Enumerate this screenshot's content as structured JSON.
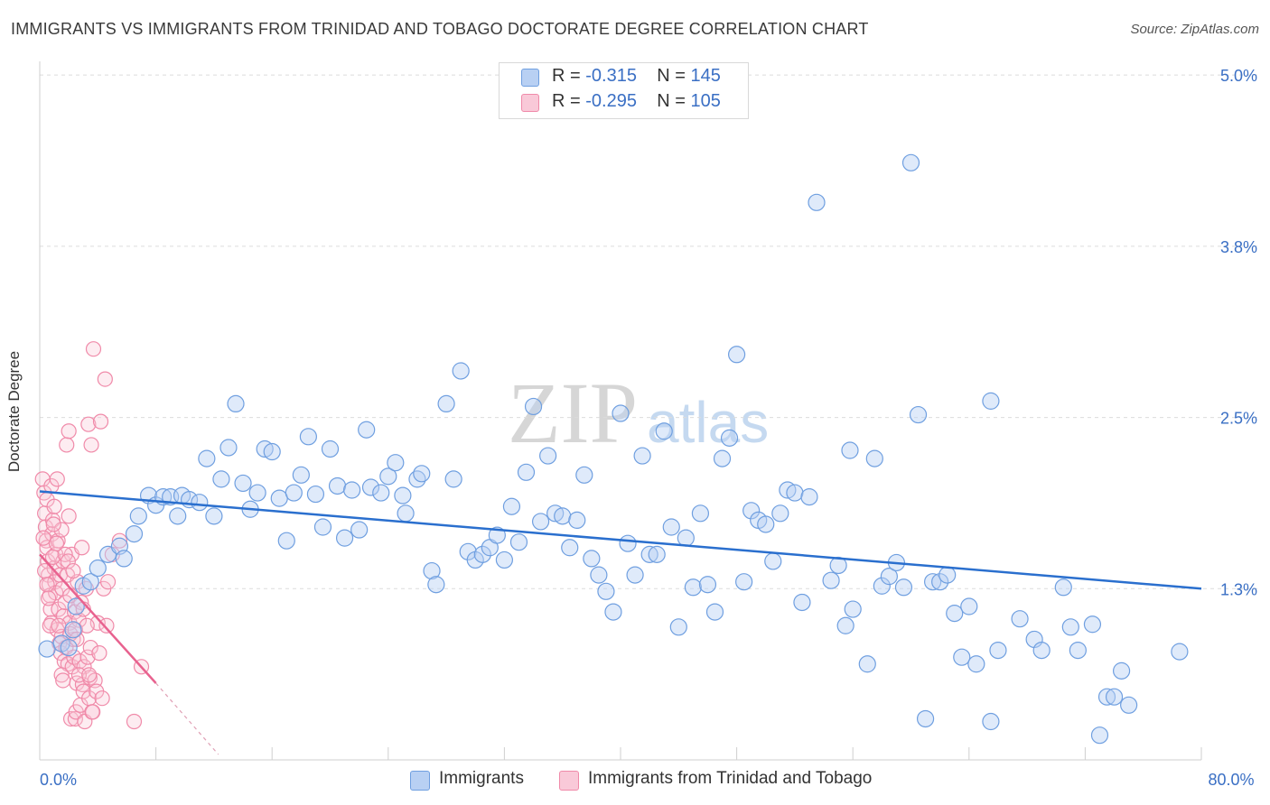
{
  "title": "IMMIGRANTS VS IMMIGRANTS FROM TRINIDAD AND TOBAGO DOCTORATE DEGREE CORRELATION CHART",
  "source": "Source: ZipAtlas.com",
  "watermark": {
    "part1": "ZIP",
    "part2": "atlas"
  },
  "colors": {
    "blue": "#6f9fe0",
    "blue_fill": "#b8d0f3",
    "blue_line": "#2a6fce",
    "pink": "#f08aa9",
    "pink_fill": "#f9c9d8",
    "pink_line": "#e8628f",
    "axis_text": "#3a6fc4"
  },
  "stats": {
    "immigrants": {
      "r_label": "R = ",
      "r_value": "-0.315",
      "n_label": "N = ",
      "n_value": "145"
    },
    "trinidad": {
      "r_label": "R = ",
      "r_value": "-0.295",
      "n_label": "N = ",
      "n_value": "105"
    }
  },
  "legend": {
    "immigrants": "Immigrants",
    "trinidad": "Immigrants from Trinidad and Tobago"
  },
  "chart_data": {
    "type": "scatter",
    "title": "IMMIGRANTS VS IMMIGRANTS FROM TRINIDAD AND TOBAGO DOCTORATE DEGREE CORRELATION CHART",
    "xlabel": "",
    "ylabel": "Doctorate Degree",
    "xlim": [
      0,
      80
    ],
    "ylim": [
      0,
      5.1
    ],
    "x_tick_labels": [
      {
        "value": 0,
        "label": "0.0%"
      },
      {
        "value": 80,
        "label": "80.0%"
      }
    ],
    "y_ticks": [
      {
        "value": 1.25,
        "label": "1.3%"
      },
      {
        "value": 2.5,
        "label": "2.5%"
      },
      {
        "value": 3.75,
        "label": "3.8%"
      },
      {
        "value": 5.0,
        "label": "5.0%"
      }
    ],
    "legend_position": "bottom",
    "series": [
      {
        "name": "Immigrants",
        "color": "#6f9fe0",
        "trend": {
          "x0": 0,
          "y0": 1.96,
          "x1": 80,
          "y1": 1.25
        },
        "points": [
          [
            0.5,
            0.81
          ],
          [
            1.5,
            0.85
          ],
          [
            2.0,
            0.82
          ],
          [
            2.3,
            0.95
          ],
          [
            2.5,
            1.12
          ],
          [
            3.0,
            1.27
          ],
          [
            3.5,
            1.3
          ],
          [
            4.0,
            1.4
          ],
          [
            4.7,
            1.5
          ],
          [
            5.5,
            1.56
          ],
          [
            5.8,
            1.47
          ],
          [
            6.5,
            1.65
          ],
          [
            6.8,
            1.78
          ],
          [
            7.5,
            1.93
          ],
          [
            8.0,
            1.86
          ],
          [
            8.5,
            1.92
          ],
          [
            9.0,
            1.92
          ],
          [
            9.5,
            1.78
          ],
          [
            9.8,
            1.93
          ],
          [
            10.3,
            1.9
          ],
          [
            11.0,
            1.88
          ],
          [
            11.5,
            2.2
          ],
          [
            12.0,
            1.78
          ],
          [
            12.5,
            2.05
          ],
          [
            13.0,
            2.28
          ],
          [
            13.5,
            2.6
          ],
          [
            14.0,
            2.02
          ],
          [
            14.5,
            1.83
          ],
          [
            15.0,
            1.95
          ],
          [
            15.5,
            2.27
          ],
          [
            16.0,
            2.25
          ],
          [
            16.5,
            1.91
          ],
          [
            17.0,
            1.6
          ],
          [
            17.5,
            1.95
          ],
          [
            18.0,
            2.08
          ],
          [
            18.5,
            2.36
          ],
          [
            19.0,
            1.94
          ],
          [
            19.5,
            1.7
          ],
          [
            20.0,
            2.27
          ],
          [
            20.5,
            2.0
          ],
          [
            21.0,
            1.62
          ],
          [
            21.5,
            1.97
          ],
          [
            22.0,
            1.68
          ],
          [
            22.5,
            2.41
          ],
          [
            22.8,
            1.99
          ],
          [
            23.5,
            1.95
          ],
          [
            24.0,
            2.07
          ],
          [
            24.5,
            2.17
          ],
          [
            25.0,
            1.93
          ],
          [
            25.2,
            1.8
          ],
          [
            26.0,
            2.05
          ],
          [
            26.3,
            2.09
          ],
          [
            27.0,
            1.38
          ],
          [
            27.3,
            1.28
          ],
          [
            28.0,
            2.6
          ],
          [
            28.5,
            2.05
          ],
          [
            29.0,
            2.84
          ],
          [
            29.5,
            1.52
          ],
          [
            30.0,
            1.46
          ],
          [
            30.5,
            1.5
          ],
          [
            31.0,
            1.55
          ],
          [
            31.5,
            1.64
          ],
          [
            32.0,
            1.46
          ],
          [
            32.5,
            1.85
          ],
          [
            33.0,
            1.59
          ],
          [
            33.5,
            2.1
          ],
          [
            34.0,
            2.58
          ],
          [
            34.5,
            1.74
          ],
          [
            35.0,
            2.22
          ],
          [
            35.5,
            1.8
          ],
          [
            36.0,
            1.78
          ],
          [
            36.5,
            1.55
          ],
          [
            37.0,
            1.75
          ],
          [
            37.5,
            2.08
          ],
          [
            38.0,
            1.47
          ],
          [
            38.5,
            1.35
          ],
          [
            39.0,
            1.23
          ],
          [
            39.5,
            1.08
          ],
          [
            40.0,
            2.53
          ],
          [
            40.5,
            1.58
          ],
          [
            41.0,
            1.35
          ],
          [
            41.5,
            2.22
          ],
          [
            42.0,
            1.5
          ],
          [
            42.5,
            1.5
          ],
          [
            43.0,
            2.4
          ],
          [
            43.5,
            1.7
          ],
          [
            44.0,
            0.97
          ],
          [
            44.5,
            1.62
          ],
          [
            45.0,
            1.26
          ],
          [
            45.5,
            1.8
          ],
          [
            46.0,
            1.28
          ],
          [
            46.5,
            1.08
          ],
          [
            47.0,
            2.2
          ],
          [
            47.5,
            2.35
          ],
          [
            48.0,
            2.96
          ],
          [
            48.5,
            1.3
          ],
          [
            49.0,
            1.82
          ],
          [
            49.5,
            1.75
          ],
          [
            50.0,
            1.72
          ],
          [
            50.5,
            1.45
          ],
          [
            51.0,
            1.8
          ],
          [
            51.5,
            1.97
          ],
          [
            52.0,
            1.95
          ],
          [
            52.5,
            1.15
          ],
          [
            53.0,
            1.92
          ],
          [
            53.5,
            4.07
          ],
          [
            54.5,
            1.31
          ],
          [
            55.0,
            1.42
          ],
          [
            55.5,
            0.98
          ],
          [
            55.8,
            2.26
          ],
          [
            56.0,
            1.1
          ],
          [
            57.0,
            0.7
          ],
          [
            57.5,
            2.2
          ],
          [
            58.0,
            1.27
          ],
          [
            58.5,
            1.34
          ],
          [
            59.0,
            1.44
          ],
          [
            59.5,
            1.26
          ],
          [
            60.0,
            4.36
          ],
          [
            60.5,
            2.52
          ],
          [
            61.0,
            0.3
          ],
          [
            61.5,
            1.3
          ],
          [
            62.0,
            1.3
          ],
          [
            62.5,
            1.35
          ],
          [
            63.0,
            1.07
          ],
          [
            63.5,
            0.75
          ],
          [
            64.0,
            1.12
          ],
          [
            64.5,
            0.7
          ],
          [
            65.5,
            2.62
          ],
          [
            65.5,
            0.28
          ],
          [
            66.0,
            0.8
          ],
          [
            67.5,
            1.03
          ],
          [
            68.5,
            0.88
          ],
          [
            69.0,
            0.8
          ],
          [
            70.5,
            1.26
          ],
          [
            71.0,
            0.97
          ],
          [
            71.5,
            0.8
          ],
          [
            72.5,
            0.99
          ],
          [
            73.0,
            0.18
          ],
          [
            73.5,
            0.46
          ],
          [
            74.0,
            0.46
          ],
          [
            74.5,
            0.65
          ],
          [
            75.0,
            0.4
          ],
          [
            78.5,
            0.79
          ]
        ]
      },
      {
        "name": "Immigrants from Trinidad and Tobago",
        "color": "#f08aa9",
        "trend": {
          "x0": 0,
          "y0": 1.5,
          "x1": 8.0,
          "y1": 0.56,
          "dash_x1": 12.3,
          "dash_y1": 0.04
        },
        "points": [
          [
            0.2,
            2.05
          ],
          [
            0.3,
            1.95
          ],
          [
            0.35,
            1.8
          ],
          [
            0.4,
            1.7
          ],
          [
            0.45,
            1.6
          ],
          [
            0.5,
            1.9
          ],
          [
            0.5,
            1.55
          ],
          [
            0.55,
            1.45
          ],
          [
            0.6,
            1.35
          ],
          [
            0.65,
            1.28
          ],
          [
            0.7,
            1.2
          ],
          [
            0.75,
            1.1
          ],
          [
            0.8,
            1.0
          ],
          [
            0.8,
            2.0
          ],
          [
            0.85,
            1.65
          ],
          [
            0.9,
            1.75
          ],
          [
            1.0,
            1.85
          ],
          [
            1.0,
            1.4
          ],
          [
            1.05,
            1.3
          ],
          [
            1.1,
            1.22
          ],
          [
            1.1,
            1.5
          ],
          [
            1.2,
            0.95
          ],
          [
            1.2,
            2.05
          ],
          [
            1.25,
            1.6
          ],
          [
            1.3,
            1.1
          ],
          [
            1.35,
            0.85
          ],
          [
            1.4,
            1.35
          ],
          [
            1.45,
            0.78
          ],
          [
            1.5,
            1.68
          ],
          [
            1.5,
            0.9
          ],
          [
            1.55,
            1.25
          ],
          [
            1.6,
            1.45
          ],
          [
            1.65,
            1.05
          ],
          [
            1.7,
            0.72
          ],
          [
            1.75,
            1.15
          ],
          [
            1.8,
            0.82
          ],
          [
            1.85,
            2.3
          ],
          [
            1.9,
            1.35
          ],
          [
            1.95,
            0.7
          ],
          [
            2.0,
            2.4
          ],
          [
            2.05,
            1.0
          ],
          [
            2.1,
            1.2
          ],
          [
            2.15,
            0.3
          ],
          [
            2.2,
            1.5
          ],
          [
            2.25,
            0.68
          ],
          [
            2.3,
            0.88
          ],
          [
            2.35,
            0.75
          ],
          [
            2.4,
            1.08
          ],
          [
            2.45,
            0.3
          ],
          [
            2.5,
            0.35
          ],
          [
            2.55,
            0.56
          ],
          [
            2.6,
            1.3
          ],
          [
            2.7,
            1.02
          ],
          [
            2.75,
            0.72
          ],
          [
            2.8,
            0.4
          ],
          [
            2.9,
            1.55
          ],
          [
            2.95,
            0.55
          ],
          [
            3.0,
            0.5
          ],
          [
            3.05,
            0.68
          ],
          [
            3.1,
            0.28
          ],
          [
            3.2,
            1.25
          ],
          [
            3.3,
            0.75
          ],
          [
            3.35,
            2.45
          ],
          [
            3.4,
            0.45
          ],
          [
            3.45,
            0.6
          ],
          [
            3.5,
            0.82
          ],
          [
            3.55,
            2.3
          ],
          [
            3.6,
            0.35
          ],
          [
            3.65,
            0.35
          ],
          [
            3.7,
            3.0
          ],
          [
            3.8,
            0.58
          ],
          [
            3.9,
            0.5
          ],
          [
            4.0,
            1.0
          ],
          [
            4.1,
            0.78
          ],
          [
            4.2,
            2.47
          ],
          [
            4.3,
            0.45
          ],
          [
            4.4,
            1.25
          ],
          [
            4.5,
            2.78
          ],
          [
            4.6,
            0.98
          ],
          [
            4.7,
            1.3
          ],
          [
            5.0,
            1.5
          ],
          [
            5.5,
            1.6
          ],
          [
            6.5,
            0.28
          ],
          [
            7.0,
            0.68
          ],
          [
            0.25,
            1.62
          ],
          [
            0.35,
            1.38
          ],
          [
            0.5,
            1.28
          ],
          [
            0.6,
            1.18
          ],
          [
            0.7,
            0.98
          ],
          [
            0.9,
            1.48
          ],
          [
            0.95,
            1.72
          ],
          [
            1.15,
            1.58
          ],
          [
            1.3,
            0.98
          ],
          [
            1.5,
            0.62
          ],
          [
            1.6,
            0.58
          ],
          [
            1.75,
            1.5
          ],
          [
            1.95,
            1.45
          ],
          [
            2.1,
            0.92
          ],
          [
            2.3,
            1.38
          ],
          [
            2.45,
            0.95
          ],
          [
            2.55,
            0.88
          ],
          [
            2.7,
            0.62
          ],
          [
            2.85,
            1.15
          ],
          [
            3.0,
            1.1
          ],
          [
            3.25,
            0.98
          ],
          [
            3.4,
            0.62
          ],
          [
            2.0,
            1.78
          ]
        ]
      }
    ]
  }
}
